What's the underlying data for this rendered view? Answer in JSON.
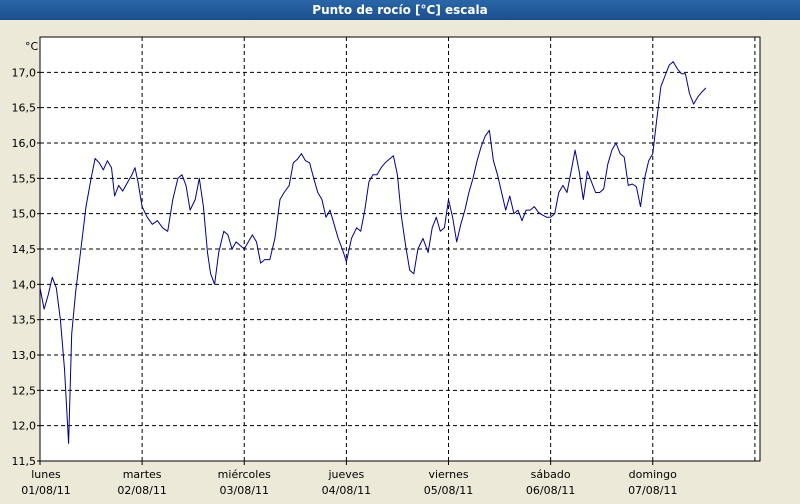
{
  "window": {
    "title": "Punto de rocío [°C] escala"
  },
  "chart_data": {
    "type": "line",
    "title": "Punto de rocío [°C] escala",
    "ylabel": "°C",
    "ylim": [
      11.5,
      17.5
    ],
    "yticks": [
      11.5,
      12.0,
      12.5,
      13.0,
      13.5,
      14.0,
      14.5,
      15.0,
      15.5,
      16.0,
      16.5,
      17.0
    ],
    "ytick_labels": [
      "11,5",
      "12,0",
      "12,5",
      "13,0",
      "13,5",
      "14,0",
      "14,5",
      "15,0",
      "15,5",
      "16,0",
      "16,5",
      "17,0"
    ],
    "x_unit": "days since 01/08/11 00:00",
    "xlim": [
      0,
      7.05
    ],
    "x_ticks": [
      {
        "day": "lunes",
        "date": "01/08/11"
      },
      {
        "day": "martes",
        "date": "02/08/11"
      },
      {
        "day": "miércoles",
        "date": "03/08/11"
      },
      {
        "day": "jueves",
        "date": "04/08/11"
      },
      {
        "day": "viernes",
        "date": "05/08/11"
      },
      {
        "day": "sábado",
        "date": "06/08/11"
      },
      {
        "day": "domingo",
        "date": "07/08/11"
      }
    ],
    "grid": true,
    "line_color": "#00008b",
    "series": [
      {
        "name": "",
        "points": [
          [
            0.0,
            13.95
          ],
          [
            0.04,
            13.65
          ],
          [
            0.08,
            13.85
          ],
          [
            0.12,
            14.1
          ],
          [
            0.16,
            13.95
          ],
          [
            0.2,
            13.5
          ],
          [
            0.24,
            12.8
          ],
          [
            0.28,
            11.75
          ],
          [
            0.31,
            13.3
          ],
          [
            0.35,
            13.9
          ],
          [
            0.4,
            14.5
          ],
          [
            0.45,
            15.1
          ],
          [
            0.5,
            15.5
          ],
          [
            0.54,
            15.78
          ],
          [
            0.58,
            15.72
          ],
          [
            0.62,
            15.62
          ],
          [
            0.66,
            15.75
          ],
          [
            0.7,
            15.65
          ],
          [
            0.73,
            15.25
          ],
          [
            0.77,
            15.4
          ],
          [
            0.81,
            15.32
          ],
          [
            0.86,
            15.45
          ],
          [
            0.9,
            15.55
          ],
          [
            0.93,
            15.65
          ],
          [
            0.96,
            15.45
          ],
          [
            1.0,
            15.1
          ],
          [
            1.05,
            14.95
          ],
          [
            1.1,
            14.85
          ],
          [
            1.15,
            14.9
          ],
          [
            1.2,
            14.8
          ],
          [
            1.25,
            14.75
          ],
          [
            1.3,
            15.2
          ],
          [
            1.35,
            15.5
          ],
          [
            1.39,
            15.55
          ],
          [
            1.43,
            15.4
          ],
          [
            1.47,
            15.05
          ],
          [
            1.52,
            15.2
          ],
          [
            1.56,
            15.5
          ],
          [
            1.6,
            15.1
          ],
          [
            1.64,
            14.45
          ],
          [
            1.67,
            14.15
          ],
          [
            1.71,
            14.0
          ],
          [
            1.75,
            14.45
          ],
          [
            1.8,
            14.75
          ],
          [
            1.84,
            14.7
          ],
          [
            1.88,
            14.5
          ],
          [
            1.92,
            14.6
          ],
          [
            1.96,
            14.55
          ],
          [
            2.0,
            14.5
          ],
          [
            2.04,
            14.6
          ],
          [
            2.08,
            14.7
          ],
          [
            2.12,
            14.6
          ],
          [
            2.16,
            14.3
          ],
          [
            2.2,
            14.35
          ],
          [
            2.25,
            14.35
          ],
          [
            2.3,
            14.65
          ],
          [
            2.35,
            15.2
          ],
          [
            2.39,
            15.3
          ],
          [
            2.44,
            15.4
          ],
          [
            2.48,
            15.72
          ],
          [
            2.52,
            15.77
          ],
          [
            2.56,
            15.85
          ],
          [
            2.6,
            15.75
          ],
          [
            2.64,
            15.72
          ],
          [
            2.68,
            15.5
          ],
          [
            2.72,
            15.3
          ],
          [
            2.76,
            15.2
          ],
          [
            2.8,
            14.95
          ],
          [
            2.84,
            15.05
          ],
          [
            2.88,
            14.85
          ],
          [
            2.92,
            14.65
          ],
          [
            2.96,
            14.5
          ],
          [
            3.0,
            14.32
          ],
          [
            3.05,
            14.65
          ],
          [
            3.1,
            14.8
          ],
          [
            3.14,
            14.75
          ],
          [
            3.18,
            15.05
          ],
          [
            3.22,
            15.45
          ],
          [
            3.26,
            15.55
          ],
          [
            3.3,
            15.55
          ],
          [
            3.34,
            15.65
          ],
          [
            3.38,
            15.72
          ],
          [
            3.42,
            15.77
          ],
          [
            3.46,
            15.82
          ],
          [
            3.5,
            15.55
          ],
          [
            3.54,
            14.95
          ],
          [
            3.58,
            14.55
          ],
          [
            3.62,
            14.2
          ],
          [
            3.66,
            14.15
          ],
          [
            3.7,
            14.5
          ],
          [
            3.75,
            14.65
          ],
          [
            3.8,
            14.45
          ],
          [
            3.84,
            14.8
          ],
          [
            3.88,
            14.95
          ],
          [
            3.92,
            14.75
          ],
          [
            3.96,
            14.8
          ],
          [
            4.0,
            15.2
          ],
          [
            4.04,
            14.95
          ],
          [
            4.08,
            14.6
          ],
          [
            4.12,
            14.85
          ],
          [
            4.16,
            15.05
          ],
          [
            4.2,
            15.3
          ],
          [
            4.24,
            15.5
          ],
          [
            4.28,
            15.75
          ],
          [
            4.32,
            15.95
          ],
          [
            4.36,
            16.1
          ],
          [
            4.4,
            16.18
          ],
          [
            4.44,
            15.75
          ],
          [
            4.48,
            15.55
          ],
          [
            4.52,
            15.3
          ],
          [
            4.56,
            15.05
          ],
          [
            4.6,
            15.25
          ],
          [
            4.64,
            15.0
          ],
          [
            4.68,
            15.05
          ],
          [
            4.72,
            14.9
          ],
          [
            4.76,
            15.05
          ],
          [
            4.8,
            15.05
          ],
          [
            4.84,
            15.1
          ],
          [
            4.88,
            15.02
          ],
          [
            4.92,
            14.98
          ],
          [
            4.96,
            14.95
          ],
          [
            5.0,
            14.95
          ],
          [
            5.04,
            15.0
          ],
          [
            5.08,
            15.3
          ],
          [
            5.12,
            15.4
          ],
          [
            5.16,
            15.3
          ],
          [
            5.2,
            15.6
          ],
          [
            5.24,
            15.9
          ],
          [
            5.28,
            15.6
          ],
          [
            5.32,
            15.2
          ],
          [
            5.36,
            15.6
          ],
          [
            5.4,
            15.45
          ],
          [
            5.44,
            15.3
          ],
          [
            5.48,
            15.3
          ],
          [
            5.52,
            15.35
          ],
          [
            5.56,
            15.7
          ],
          [
            5.6,
            15.9
          ],
          [
            5.64,
            16.0
          ],
          [
            5.68,
            15.85
          ],
          [
            5.72,
            15.8
          ],
          [
            5.76,
            15.4
          ],
          [
            5.8,
            15.42
          ],
          [
            5.84,
            15.38
          ],
          [
            5.88,
            15.1
          ],
          [
            5.92,
            15.5
          ],
          [
            5.96,
            15.75
          ],
          [
            6.0,
            15.85
          ],
          [
            6.04,
            16.35
          ],
          [
            6.08,
            16.8
          ],
          [
            6.12,
            16.95
          ],
          [
            6.16,
            17.1
          ],
          [
            6.2,
            17.15
          ],
          [
            6.24,
            17.05
          ],
          [
            6.28,
            16.98
          ],
          [
            6.32,
            16.98
          ],
          [
            6.36,
            16.7
          ],
          [
            6.4,
            16.55
          ],
          [
            6.44,
            16.65
          ],
          [
            6.48,
            16.72
          ],
          [
            6.52,
            16.78
          ]
        ]
      }
    ]
  }
}
